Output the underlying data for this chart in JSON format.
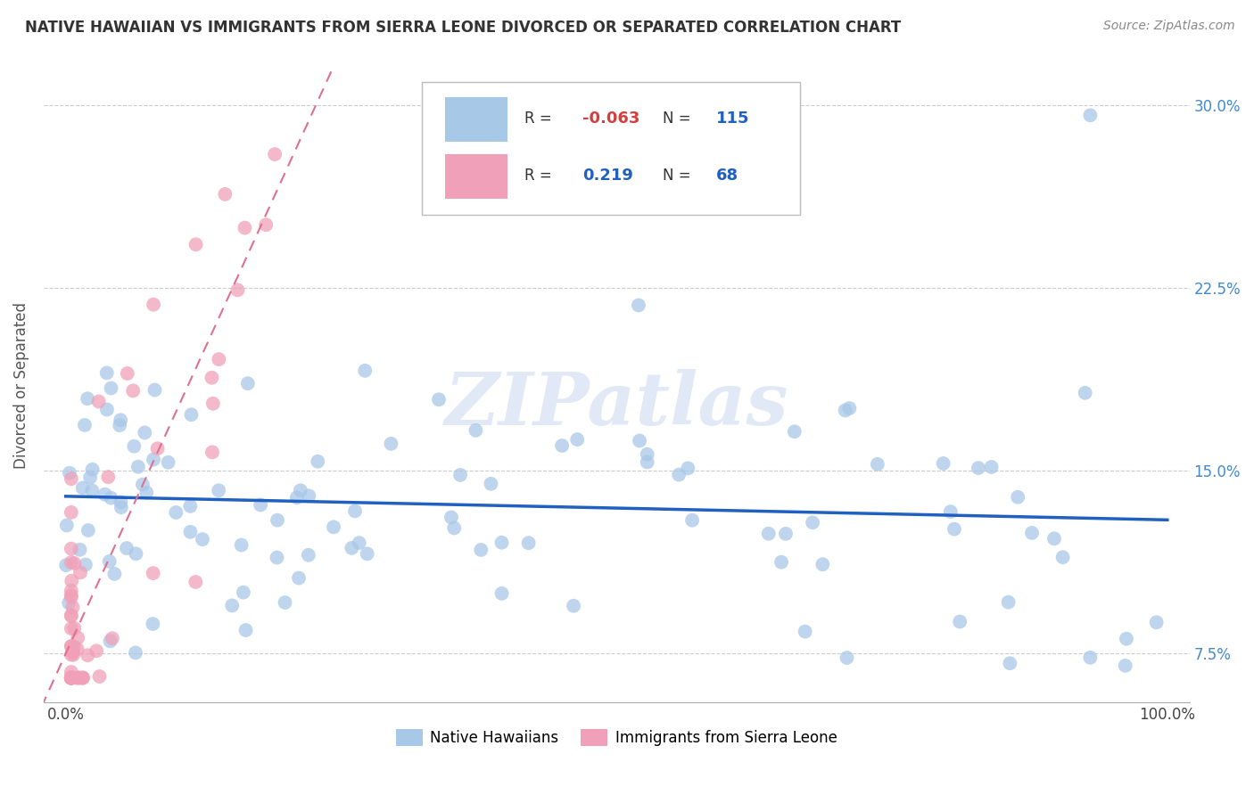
{
  "title": "NATIVE HAWAIIAN VS IMMIGRANTS FROM SIERRA LEONE DIVORCED OR SEPARATED CORRELATION CHART",
  "source": "Source: ZipAtlas.com",
  "ylabel": "Divorced or Separated",
  "x_min": 0.0,
  "x_max": 1.0,
  "y_min": 0.055,
  "y_max": 0.315,
  "y_ticks": [
    0.075,
    0.15,
    0.225,
    0.3
  ],
  "y_tick_labels": [
    "7.5%",
    "15.0%",
    "22.5%",
    "30.0%"
  ],
  "x_ticks": [
    0.0,
    0.25,
    0.5,
    0.75,
    1.0
  ],
  "x_tick_labels": [
    "0.0%",
    "",
    "",
    "",
    "100.0%"
  ],
  "grid_color": "#cccccc",
  "background_color": "#ffffff",
  "blue_color": "#a8c8e8",
  "pink_color": "#f0a0b8",
  "blue_line_color": "#2060c0",
  "pink_line_color": "#e07090",
  "R_blue": -0.063,
  "N_blue": 115,
  "R_pink": 0.219,
  "N_pink": 68,
  "legend_label_blue": "Native Hawaiians",
  "legend_label_pink": "Immigrants from Sierra Leone",
  "watermark": "ZIPatlas"
}
